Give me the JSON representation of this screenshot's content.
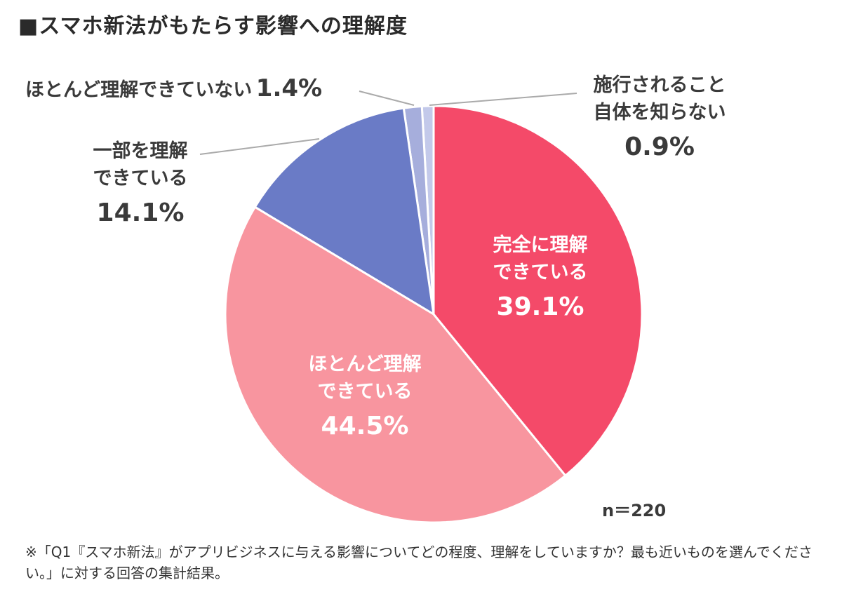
{
  "chart_data": {
    "type": "pie",
    "title": "■スマホ新法がもたらす影響への理解度",
    "start": "top-clockwise",
    "slices": [
      {
        "label": "完全に理解できている",
        "label_lines": [
          "完全に理解",
          "できている"
        ],
        "value": 39.1,
        "display": "39.1%",
        "color": "#F44A69"
      },
      {
        "label": "ほとんど理解できている",
        "label_lines": [
          "ほとんど理解",
          "できている"
        ],
        "value": 44.5,
        "display": "44.5%",
        "color": "#F8959F"
      },
      {
        "label": "一部を理解できている",
        "label_lines": [
          "一部を理解",
          "できている"
        ],
        "value": 14.1,
        "display": "14.1%",
        "color": "#6A7BC6"
      },
      {
        "label": "ほとんど理解できていない",
        "label_lines": [
          "ほとんど理解できていない"
        ],
        "value": 1.4,
        "display": "1.4%",
        "color": "#A6AEDC"
      },
      {
        "label": "施行されること自体を知らない",
        "label_lines": [
          "施行されること",
          "自体を知らない"
        ],
        "value": 0.9,
        "display": "0.9%",
        "color": "#C3C9EA"
      }
    ],
    "sample": "n＝220",
    "footnote": "※「Q1『スマホ新法』がアプリビジネスに与える影響についてどの程度、理解をしていますか？最も近いものを選んでください。」に対する回答の集計結果。"
  }
}
